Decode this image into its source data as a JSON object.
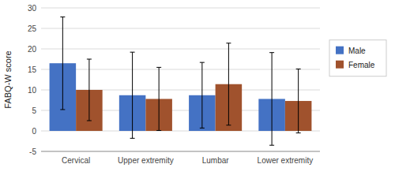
{
  "chart_data": {
    "type": "bar",
    "categories": [
      "Cervical",
      "Upper extremity",
      "Lumbar",
      "Lower extremity"
    ],
    "ylabel": "FABQ-W score",
    "series": [
      {
        "name": "Male",
        "color": "#4472C4",
        "values": [
          16.5,
          8.7,
          8.7,
          7.8
        ],
        "errors": [
          11.3,
          10.5,
          8.0,
          11.3
        ]
      },
      {
        "name": "Female",
        "color": "#A0522D",
        "values": [
          10.0,
          7.8,
          11.4,
          7.3
        ],
        "errors": [
          7.5,
          7.7,
          10.0,
          7.8
        ]
      }
    ],
    "ylim": [
      -5,
      30
    ],
    "yticks": [
      -5,
      0,
      5,
      10,
      15,
      20,
      25,
      30
    ],
    "grid": true,
    "legend": "right"
  }
}
